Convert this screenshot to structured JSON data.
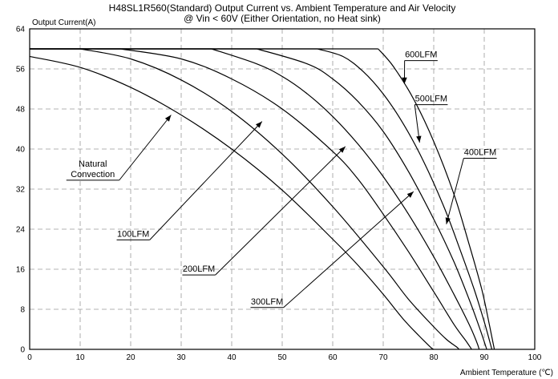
{
  "chart_data": {
    "type": "line",
    "title": "H48SL1R560(Standard) Output Current vs. Ambient Temperature and Air Velocity",
    "subtitle": "@ Vin < 60V (Either Orientation, no Heat sink)",
    "xlabel": "Ambient Temperature (℃)",
    "ylabel": "Output Current(A)",
    "xlim": [
      0,
      100
    ],
    "ylim": [
      0,
      64
    ],
    "xticks": [
      0,
      10,
      20,
      30,
      40,
      50,
      60,
      70,
      80,
      90,
      100
    ],
    "yticks": [
      0,
      8,
      16,
      24,
      32,
      40,
      48,
      56,
      64
    ],
    "grid": true,
    "series": [
      {
        "name": "Natural Convection",
        "x": [
          0,
          10,
          20,
          30,
          40,
          50,
          60,
          65,
          70,
          74,
          77,
          78.5,
          79.5,
          80
        ],
        "y": [
          58.5,
          56.3,
          52.3,
          46.8,
          40.0,
          31.8,
          22.0,
          16.8,
          11.0,
          6.0,
          2.8,
          1.3,
          0.3,
          0
        ]
      },
      {
        "name": "100LFM",
        "x": [
          0,
          10,
          20,
          30,
          40,
          50,
          60,
          70,
          75,
          80,
          82.5,
          84.5,
          85
        ],
        "y": [
          60,
          60,
          58.0,
          53.8,
          47.5,
          39.0,
          28.5,
          16.5,
          10.0,
          4.5,
          2.0,
          0.5,
          0
        ]
      },
      {
        "name": "200LFM",
        "x": [
          0,
          18,
          30,
          40,
          50,
          60,
          65,
          70,
          75,
          80,
          84,
          86.5,
          87.5
        ],
        "y": [
          60,
          60,
          58.0,
          54.0,
          48.0,
          39.5,
          34.0,
          27.0,
          19.5,
          11.5,
          5.0,
          1.5,
          0
        ]
      },
      {
        "name": "300LFM",
        "x": [
          0,
          36,
          45,
          50,
          55,
          60,
          65,
          70,
          75,
          80,
          84,
          87,
          88.5,
          89
        ],
        "y": [
          60,
          60,
          57.0,
          54.5,
          51.0,
          46.5,
          41.0,
          34.5,
          27.0,
          18.5,
          11.0,
          5.0,
          1.5,
          0
        ]
      },
      {
        "name": "400LFM",
        "x": [
          0,
          45,
          55,
          60,
          65,
          70,
          75,
          80,
          84,
          87,
          89,
          90.5
        ],
        "y": [
          60,
          60,
          57.0,
          54.0,
          49.5,
          43.5,
          35.5,
          26.0,
          17.5,
          10.0,
          4.5,
          0
        ]
      },
      {
        "name": "500LFM",
        "x": [
          0,
          57,
          62,
          66,
          70,
          74,
          78,
          82,
          85,
          88,
          90,
          91.5
        ],
        "y": [
          60,
          60,
          58.5,
          55.5,
          51.0,
          45.0,
          37.5,
          28.5,
          20.5,
          12.0,
          5.5,
          0
        ]
      },
      {
        "name": "600LFM",
        "x": [
          0,
          69,
          72,
          76,
          80,
          84,
          87,
          89.5,
          91,
          92
        ],
        "y": [
          60,
          60,
          56.5,
          50.0,
          41.5,
          31.0,
          21.0,
          12.0,
          5.0,
          0
        ]
      }
    ],
    "annotations": [
      {
        "text": "600LFM",
        "x": 77.5,
        "y": 58.3,
        "anchor_x": 74.2,
        "anchor_y": 53.0
      },
      {
        "text": "500LFM",
        "x": 79.5,
        "y": 49.5,
        "anchor_x": 77.2,
        "anchor_y": 41.3
      },
      {
        "text": "400LFM",
        "x": 89.2,
        "y": 38.8,
        "anchor_x": 82.5,
        "anchor_y": 25.0
      },
      {
        "text": "300LFM",
        "x": 47.0,
        "y": 9.0,
        "anchor_x": 76.0,
        "anchor_y": 31.5
      },
      {
        "text": "200LFM",
        "x": 33.5,
        "y": 15.5,
        "anchor_x": 62.5,
        "anchor_y": 40.5
      },
      {
        "text": "100LFM",
        "x": 20.5,
        "y": 22.5,
        "anchor_x": 46.0,
        "anchor_y": 45.5
      },
      {
        "text": "Natural\nConvection",
        "x": 12.5,
        "y": 36.5,
        "anchor_x": 28.0,
        "anchor_y": 46.8
      }
    ]
  }
}
